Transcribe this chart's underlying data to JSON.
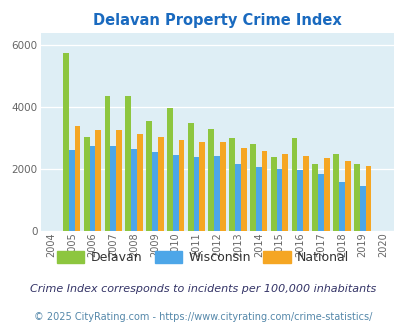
{
  "title": "Delavan Property Crime Index",
  "years": [
    2004,
    2005,
    2006,
    2007,
    2008,
    2009,
    2010,
    2011,
    2012,
    2013,
    2014,
    2015,
    2016,
    2017,
    2018,
    2019,
    2020
  ],
  "delavan": [
    null,
    5750,
    3050,
    4350,
    4350,
    3550,
    3980,
    3500,
    3300,
    3000,
    2800,
    2400,
    3000,
    2180,
    2500,
    2150,
    null
  ],
  "wisconsin": [
    null,
    2620,
    2750,
    2750,
    2650,
    2560,
    2460,
    2380,
    2440,
    2180,
    2080,
    1990,
    1960,
    1840,
    1570,
    1470,
    null
  ],
  "national": [
    null,
    3400,
    3280,
    3250,
    3140,
    3050,
    2940,
    2870,
    2870,
    2680,
    2580,
    2500,
    2430,
    2360,
    2270,
    2110,
    null
  ],
  "bar_colors": {
    "delavan": "#8dc63f",
    "wisconsin": "#4da6e8",
    "national": "#f5a623"
  },
  "ylim": [
    0,
    6400
  ],
  "yticks": [
    0,
    2000,
    4000,
    6000
  ],
  "plot_bg": "#deeef5",
  "title_color": "#1a6abf",
  "legend_labels": [
    "Delavan",
    "Wisconsin",
    "National"
  ],
  "footnote1": "Crime Index corresponds to incidents per 100,000 inhabitants",
  "footnote2": "© 2025 CityRating.com - https://www.cityrating.com/crime-statistics/",
  "footnote1_color": "#333366",
  "footnote2_color": "#5588aa"
}
